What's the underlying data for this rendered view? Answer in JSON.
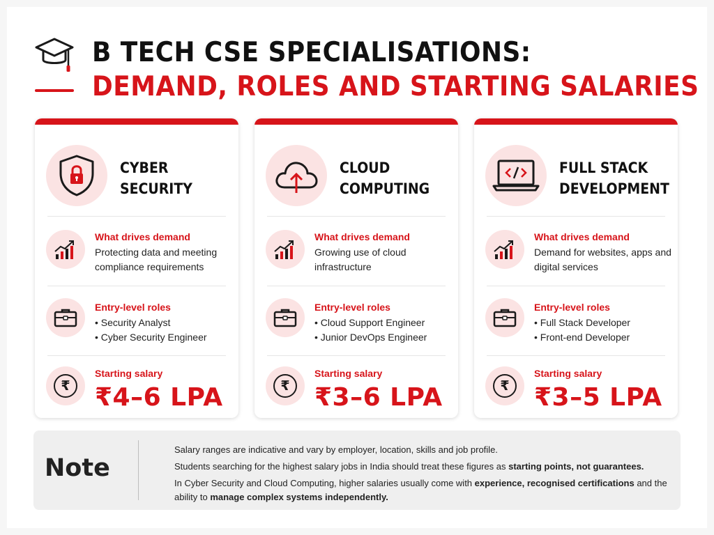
{
  "header": {
    "title_line1": "B TECH CSE SPECIALISATIONS:",
    "title_line2": "DEMAND, ROLES AND STARTING SALARIES",
    "icon": "graduation-cap-icon"
  },
  "colors": {
    "accent": "#d7141a",
    "tint": "#fbe3e3",
    "note_bg": "#efefef"
  },
  "cards": [
    {
      "title_line1": "CYBER",
      "title_line2": "SECURITY",
      "icon": "shield-lock-icon",
      "demand_heading": "What drives demand",
      "demand_text": "Protecting data and meeting compliance requirements",
      "roles_heading": "Entry-level roles",
      "roles": [
        "Security Analyst",
        "Cyber Security Engineer"
      ],
      "salary_heading": "Starting salary",
      "salary": "₹4–6 LPA"
    },
    {
      "title_line1": "CLOUD",
      "title_line2": "COMPUTING",
      "icon": "cloud-upload-icon",
      "demand_heading": "What drives demand",
      "demand_text": "Growing use of cloud infrastructure",
      "roles_heading": "Entry-level roles",
      "roles": [
        "Cloud Support Engineer",
        "Junior DevOps Engineer"
      ],
      "salary_heading": "Starting salary",
      "salary": "₹3–6 LPA"
    },
    {
      "title_line1": "FULL STACK",
      "title_line2": "DEVELOPMENT",
      "icon": "laptop-code-icon",
      "demand_heading": "What drives demand",
      "demand_text": "Demand for websites, apps and digital services",
      "roles_heading": "Entry-level roles",
      "roles": [
        "Full Stack Developer",
        "Front-end Developer"
      ],
      "salary_heading": "Starting salary",
      "salary": "₹3–5 LPA"
    }
  ],
  "note": {
    "label": "Note",
    "line1": "Salary ranges are indicative and vary by employer, location, skills and job profile.",
    "line2_a": "Students searching for the highest salary jobs in India should treat these figures as ",
    "line2_b": "starting points, not guarantees.",
    "line3_a": "In Cyber Security and Cloud Computing, higher salaries usually come with ",
    "line3_b": "experience, recognised certifications",
    "line3_c": " and the ability to ",
    "line3_d": "manage complex systems independently."
  }
}
